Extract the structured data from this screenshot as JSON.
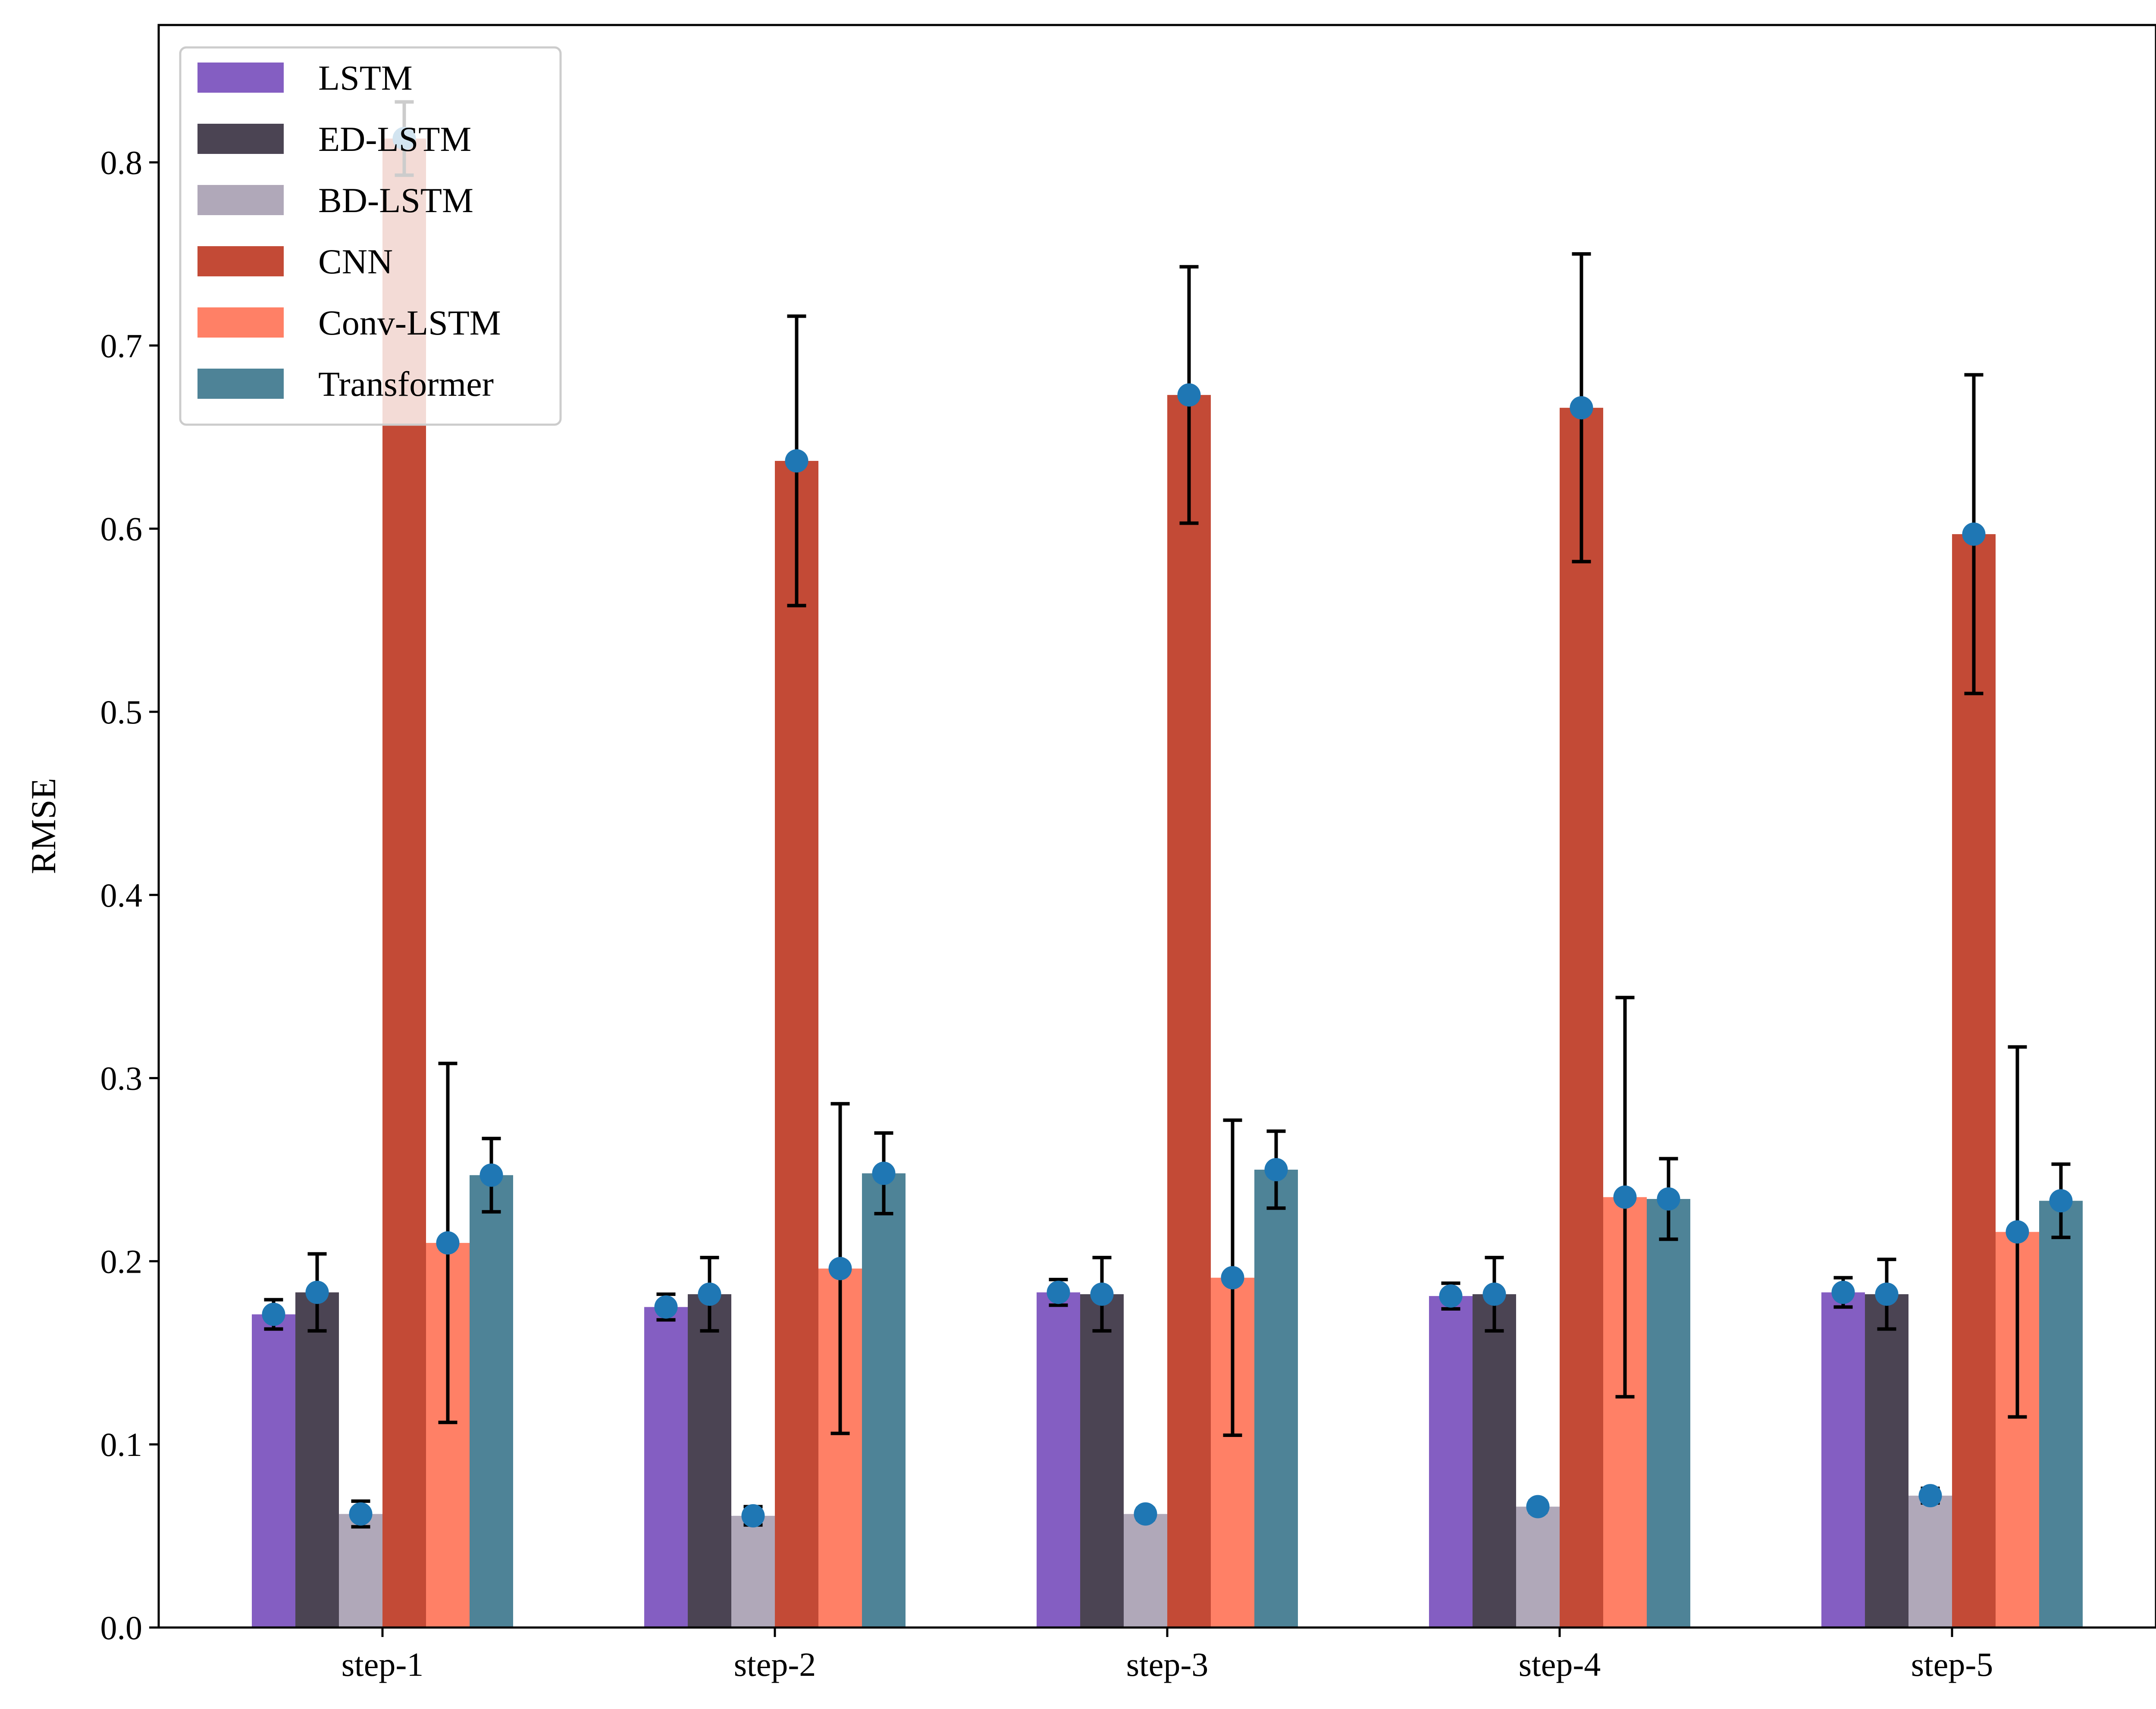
{
  "chart_data": {
    "type": "bar",
    "title": "",
    "xlabel": "",
    "ylabel": "RMSE",
    "ylim": [
      0.0,
      0.875
    ],
    "yticks": [
      0.0,
      0.1,
      0.2,
      0.3,
      0.4,
      0.5,
      0.6,
      0.7,
      0.8
    ],
    "ytick_labels": [
      "0.0",
      "0.1",
      "0.2",
      "0.3",
      "0.4",
      "0.5",
      "0.6",
      "0.7",
      "0.8"
    ],
    "categories": [
      "step-1",
      "step-2",
      "step-3",
      "step-4",
      "step-5"
    ],
    "legend_position": "top-left",
    "marker_color": "#1f77b4",
    "errorbar_color": "#000000",
    "series": [
      {
        "name": "LSTM",
        "color": "#845EC2",
        "values": [
          0.171,
          0.175,
          0.183,
          0.181,
          0.183
        ],
        "err": [
          0.008,
          0.007,
          0.007,
          0.007,
          0.008
        ]
      },
      {
        "name": "ED-LSTM",
        "color": "#4B4453",
        "values": [
          0.183,
          0.182,
          0.182,
          0.182,
          0.182
        ],
        "err": [
          0.021,
          0.02,
          0.02,
          0.02,
          0.019
        ]
      },
      {
        "name": "BD-LSTM",
        "color": "#B0A8B9",
        "values": [
          0.062,
          0.061,
          0.062,
          0.066,
          0.072
        ],
        "err": [
          0.007,
          0.005,
          0.003,
          0.003,
          0.004
        ]
      },
      {
        "name": "CNN",
        "color": "#C34A36",
        "values": [
          0.813,
          0.637,
          0.673,
          0.666,
          0.597
        ],
        "err": [
          0.02,
          0.079,
          0.07,
          0.084,
          0.087
        ]
      },
      {
        "name": "Conv-LSTM",
        "color": "#FF8066",
        "values": [
          0.21,
          0.196,
          0.191,
          0.235,
          0.216
        ],
        "err": [
          0.098,
          0.09,
          0.086,
          0.109,
          0.101
        ]
      },
      {
        "name": "Transformer",
        "color": "#4E8397",
        "values": [
          0.247,
          0.248,
          0.25,
          0.234,
          0.233
        ],
        "err": [
          0.02,
          0.022,
          0.021,
          0.022,
          0.02
        ]
      }
    ]
  }
}
